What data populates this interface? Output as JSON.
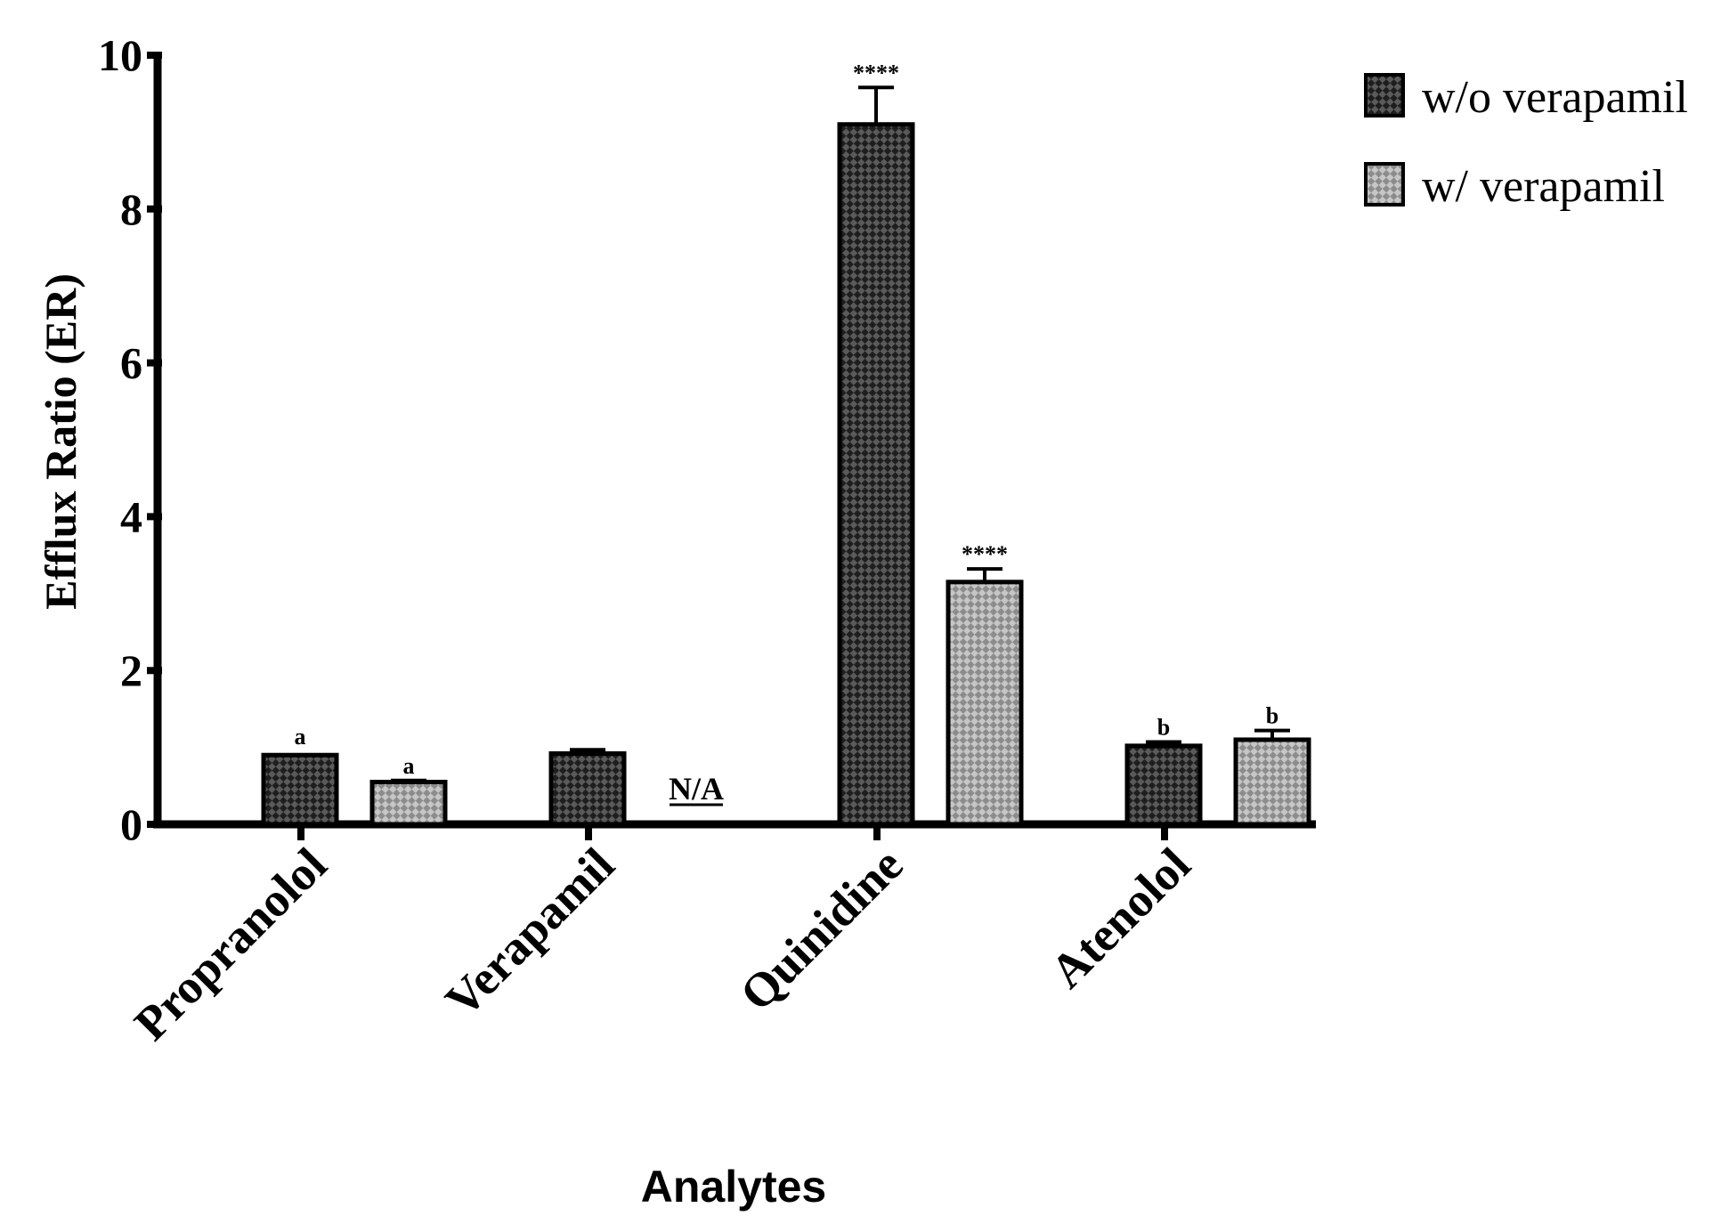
{
  "chart_data": {
    "type": "bar",
    "categories": [
      "Propranolol",
      "Verapamil",
      "Quinidine",
      "Atenolol"
    ],
    "series": [
      {
        "name": "w/o verapamil",
        "values": [
          0.9,
          0.92,
          9.1,
          1.02
        ],
        "errors": [
          0.0,
          0.05,
          0.48,
          0.05
        ],
        "annotations": [
          "a",
          "",
          "****",
          "b"
        ],
        "pattern": "dark-checker"
      },
      {
        "name": "w/ verapamil",
        "values": [
          0.55,
          null,
          3.15,
          1.1
        ],
        "errors": [
          0.02,
          null,
          0.17,
          0.12
        ],
        "annotations": [
          "a",
          "N/A",
          "****",
          "b"
        ],
        "pattern": "light-checker"
      }
    ],
    "xlabel": "Analytes",
    "ylabel": "Efflux Ratio (ER)",
    "ylim": [
      0,
      10
    ],
    "yticks": [
      "0",
      "2",
      "4",
      "6",
      "8",
      "10"
    ],
    "grid": false,
    "legend_position": "top-right"
  },
  "colors": {
    "dark_fill": "#1e1e1e",
    "dark_pattern": "#5a5a5a",
    "light_fill": "#8c8c8c",
    "light_pattern": "#c6c6c6",
    "axis": "#000000"
  }
}
